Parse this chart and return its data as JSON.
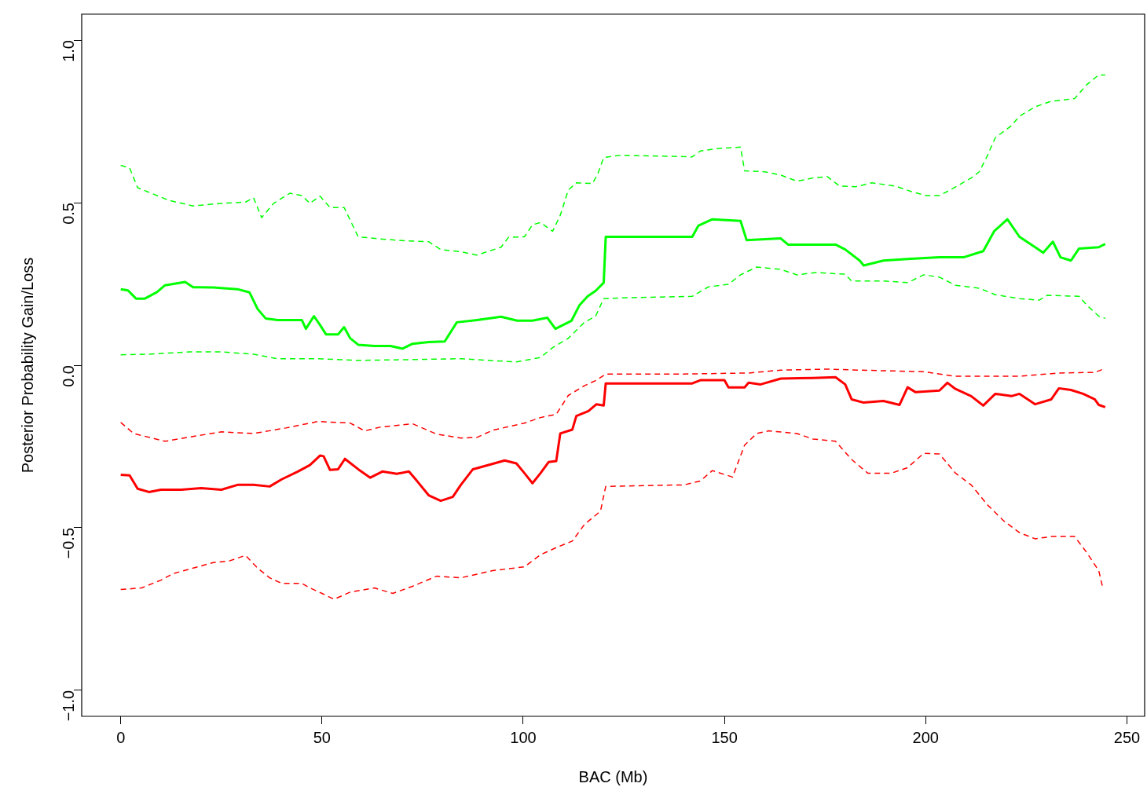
{
  "chart_data": {
    "type": "line",
    "xlabel": "BAC (Mb)",
    "ylabel": "Posterior Probability Gain/Loss",
    "xlim": [
      -9.7,
      254.4
    ],
    "ylim": [
      -1.08,
      1.08
    ],
    "xticks": [
      0,
      50,
      100,
      150,
      200,
      250
    ],
    "yticks": [
      {
        "value": -1,
        "label": "−1.0"
      },
      {
        "value": -0.5,
        "label": "−0.5"
      },
      {
        "value": 0,
        "label": "0.0"
      },
      {
        "value": 0.5,
        "label": "0.5"
      },
      {
        "value": 1,
        "label": "1.0"
      }
    ],
    "grid": false,
    "legend": false,
    "series": [
      {
        "color": "#00ff00",
        "line_style": "solid",
        "x": [
          0,
          1.8,
          3.8,
          6,
          9,
          11,
          16,
          18,
          23,
          29,
          32,
          34,
          36,
          39,
          45,
          46,
          48,
          49.5,
          51,
          54,
          55.5,
          57,
          59,
          63,
          67,
          70,
          72.5,
          76.5,
          80.5,
          83.5,
          88.5,
          94.5,
          98.5,
          102.3,
          106,
          108,
          112,
          114,
          116,
          118,
          120,
          120.5,
          124,
          142,
          143.5,
          147,
          154,
          155.5,
          164,
          165.8,
          172,
          177.6,
          180,
          183.6,
          184.6,
          189.5,
          195.5,
          203.4,
          209.4,
          214.3,
          217,
          220.3,
          223.3,
          227.2,
          229.2,
          231.6,
          233.5,
          236.1,
          238.1,
          243,
          244.6
        ],
        "values": [
          0.234,
          0.23,
          0.205,
          0.205,
          0.225,
          0.246,
          0.256,
          0.24,
          0.239,
          0.234,
          0.224,
          0.173,
          0.144,
          0.139,
          0.139,
          0.112,
          0.151,
          0.124,
          0.095,
          0.095,
          0.117,
          0.083,
          0.063,
          0.059,
          0.059,
          0.051,
          0.066,
          0.071,
          0.073,
          0.132,
          0.139,
          0.149,
          0.137,
          0.137,
          0.146,
          0.112,
          0.137,
          0.185,
          0.212,
          0.229,
          0.254,
          0.395,
          0.395,
          0.395,
          0.429,
          0.449,
          0.444,
          0.385,
          0.39,
          0.371,
          0.371,
          0.371,
          0.356,
          0.322,
          0.307,
          0.322,
          0.327,
          0.332,
          0.332,
          0.351,
          0.412,
          0.449,
          0.395,
          0.363,
          0.346,
          0.38,
          0.332,
          0.322,
          0.359,
          0.363,
          0.373
        ]
      },
      {
        "color": "#00ff00",
        "line_style": "dashed",
        "x": [
          0,
          2.2,
          4.2,
          8,
          12,
          18,
          25,
          31,
          33,
          35,
          38,
          42,
          45,
          47,
          49.5,
          52,
          55.5,
          59,
          65,
          70.5,
          76.5,
          79.5,
          84.5,
          88.5,
          94.5,
          96.3,
          100.3,
          102.3,
          104.3,
          107.3,
          109.2,
          111.2,
          113.2,
          117.2,
          118.5,
          120,
          124,
          142,
          144,
          148,
          154,
          155,
          160,
          164,
          168,
          172,
          175.6,
          178.6,
          182.6,
          186.6,
          192.5,
          196.5,
          200,
          203.4,
          206.4,
          211.3,
          213.3,
          215.3,
          217.3,
          221.3,
          223.3,
          227.2,
          231.2,
          237,
          240,
          243,
          244.6
        ],
        "values": [
          0.615,
          0.607,
          0.546,
          0.527,
          0.507,
          0.49,
          0.498,
          0.502,
          0.515,
          0.454,
          0.498,
          0.529,
          0.522,
          0.498,
          0.52,
          0.485,
          0.485,
          0.395,
          0.388,
          0.383,
          0.38,
          0.356,
          0.349,
          0.339,
          0.363,
          0.393,
          0.395,
          0.432,
          0.439,
          0.412,
          0.461,
          0.539,
          0.561,
          0.559,
          0.588,
          0.639,
          0.646,
          0.641,
          0.659,
          0.666,
          0.671,
          0.598,
          0.595,
          0.585,
          0.566,
          0.576,
          0.58,
          0.551,
          0.549,
          0.561,
          0.551,
          0.534,
          0.522,
          0.522,
          0.541,
          0.576,
          0.595,
          0.644,
          0.7,
          0.737,
          0.766,
          0.795,
          0.812,
          0.82,
          0.863,
          0.893,
          0.893
        ]
      },
      {
        "color": "#00ff00",
        "line_style": "dashed",
        "x": [
          0,
          7,
          17,
          25,
          33,
          39,
          49,
          59,
          70.5,
          84.5,
          98.3,
          104.3,
          107.3,
          111.2,
          115.2,
          118,
          120,
          124,
          142,
          146,
          151,
          154,
          158,
          164,
          168,
          172.7,
          180,
          181.6,
          189.5,
          195.5,
          199.5,
          203.4,
          207.4,
          213.3,
          217.3,
          223.3,
          228.2,
          230.2,
          238.1,
          240,
          243,
          244.6
        ],
        "values": [
          0.032,
          0.034,
          0.041,
          0.041,
          0.034,
          0.02,
          0.02,
          0.015,
          0.017,
          0.02,
          0.01,
          0.024,
          0.054,
          0.083,
          0.132,
          0.151,
          0.205,
          0.207,
          0.212,
          0.241,
          0.249,
          0.278,
          0.302,
          0.295,
          0.278,
          0.285,
          0.28,
          0.259,
          0.259,
          0.254,
          0.278,
          0.271,
          0.246,
          0.237,
          0.217,
          0.205,
          0.2,
          0.215,
          0.212,
          0.185,
          0.151,
          0.144
        ]
      },
      {
        "color": "#ff0000",
        "line_style": "solid",
        "x": [
          0,
          2.2,
          4.2,
          7,
          10,
          15,
          20,
          25,
          29,
          33,
          37,
          40,
          44,
          47,
          49.5,
          50.4,
          52,
          54,
          55.7,
          59,
          62,
          65,
          68.6,
          71.6,
          73.6,
          76.5,
          79.5,
          82.5,
          84.5,
          87.5,
          91.4,
          95.4,
          98.3,
          100.3,
          102.3,
          104.3,
          106.3,
          108.2,
          109.2,
          112.2,
          113.2,
          116.2,
          118.2,
          120,
          120.5,
          128,
          142,
          144,
          150,
          151,
          155,
          156,
          159,
          164,
          172,
          177.6,
          180,
          181.6,
          184.6,
          189.5,
          193.5,
          195.5,
          197.5,
          203.4,
          205.4,
          207.4,
          211.3,
          214.3,
          217.3,
          221.3,
          223.3,
          227.2,
          231.2,
          233.1,
          236.1,
          239.1,
          242,
          243,
          244.6
        ],
        "values": [
          -0.337,
          -0.339,
          -0.38,
          -0.39,
          -0.383,
          -0.383,
          -0.378,
          -0.383,
          -0.368,
          -0.368,
          -0.373,
          -0.351,
          -0.327,
          -0.307,
          -0.278,
          -0.28,
          -0.322,
          -0.32,
          -0.288,
          -0.32,
          -0.346,
          -0.327,
          -0.334,
          -0.327,
          -0.356,
          -0.4,
          -0.417,
          -0.405,
          -0.368,
          -0.32,
          -0.307,
          -0.293,
          -0.302,
          -0.332,
          -0.363,
          -0.332,
          -0.298,
          -0.295,
          -0.21,
          -0.198,
          -0.156,
          -0.141,
          -0.12,
          -0.124,
          -0.056,
          -0.056,
          -0.056,
          -0.046,
          -0.046,
          -0.068,
          -0.068,
          -0.054,
          -0.059,
          -0.041,
          -0.039,
          -0.037,
          -0.059,
          -0.105,
          -0.115,
          -0.11,
          -0.122,
          -0.068,
          -0.083,
          -0.078,
          -0.054,
          -0.073,
          -0.095,
          -0.124,
          -0.088,
          -0.095,
          -0.088,
          -0.12,
          -0.105,
          -0.071,
          -0.076,
          -0.088,
          -0.105,
          -0.122,
          -0.129
        ]
      },
      {
        "color": "#ff0000",
        "line_style": "dashed",
        "x": [
          0,
          3.2,
          11,
          19,
          25,
          33,
          41,
          49,
          57,
          60.6,
          64.6,
          72.5,
          78.5,
          84.5,
          88.5,
          92.4,
          100.3,
          104.3,
          108.2,
          111.2,
          115.2,
          118.2,
          120.5,
          140,
          156,
          164,
          175.6,
          183.6,
          199.5,
          207.4,
          223.3,
          233.1,
          242,
          244.6
        ],
        "values": [
          -0.176,
          -0.21,
          -0.234,
          -0.217,
          -0.205,
          -0.21,
          -0.193,
          -0.173,
          -0.178,
          -0.202,
          -0.19,
          -0.18,
          -0.212,
          -0.224,
          -0.222,
          -0.2,
          -0.178,
          -0.161,
          -0.151,
          -0.093,
          -0.063,
          -0.046,
          -0.027,
          -0.027,
          -0.024,
          -0.015,
          -0.012,
          -0.015,
          -0.02,
          -0.034,
          -0.034,
          -0.024,
          -0.022,
          -0.01
        ]
      },
      {
        "color": "#ff0000",
        "line_style": "dashed",
        "x": [
          0,
          5.2,
          10,
          13,
          18,
          23,
          27,
          31,
          34,
          37,
          40,
          45,
          47,
          50,
          53,
          57,
          63,
          67.6,
          72.5,
          78.5,
          84.5,
          92.4,
          100.3,
          104.3,
          108.2,
          112.2,
          115.2,
          119.2,
          120.5,
          140,
          144,
          147,
          152,
          155,
          158,
          161,
          168,
          172,
          177.6,
          181.6,
          185.6,
          191.5,
          195.5,
          199.5,
          203.4,
          207.4,
          211.3,
          215.3,
          219.3,
          223.3,
          227.2,
          231.2,
          237,
          240,
          243,
          244
        ],
        "values": [
          -0.69,
          -0.685,
          -0.661,
          -0.641,
          -0.624,
          -0.607,
          -0.602,
          -0.585,
          -0.624,
          -0.654,
          -0.671,
          -0.671,
          -0.685,
          -0.702,
          -0.72,
          -0.698,
          -0.685,
          -0.702,
          -0.68,
          -0.649,
          -0.654,
          -0.632,
          -0.62,
          -0.583,
          -0.561,
          -0.541,
          -0.49,
          -0.449,
          -0.373,
          -0.368,
          -0.356,
          -0.324,
          -0.344,
          -0.246,
          -0.21,
          -0.202,
          -0.21,
          -0.227,
          -0.234,
          -0.29,
          -0.332,
          -0.332,
          -0.315,
          -0.271,
          -0.273,
          -0.332,
          -0.368,
          -0.429,
          -0.478,
          -0.515,
          -0.534,
          -0.527,
          -0.527,
          -0.576,
          -0.632,
          -0.685
        ]
      }
    ]
  }
}
